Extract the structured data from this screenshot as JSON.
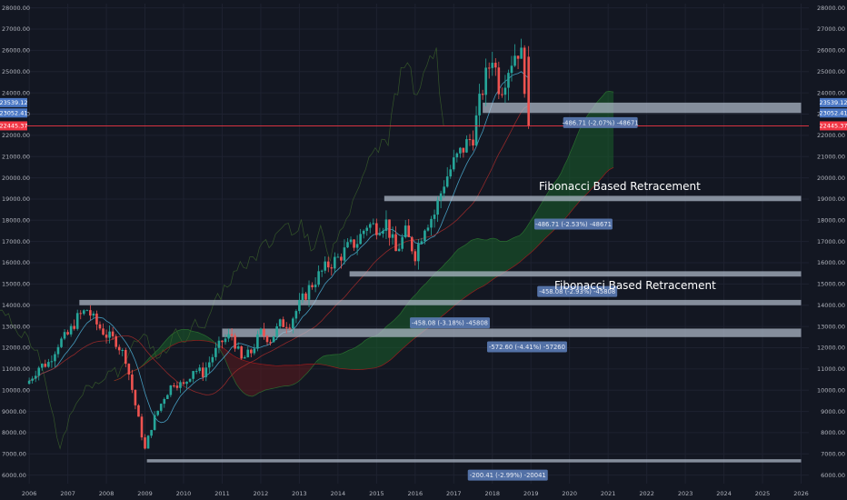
{
  "colors": {
    "background": "#131722",
    "grid": "#1e2230",
    "axis_text": "#b2b5be",
    "up_candle": "#26a69a",
    "down_candle": "#ef5350",
    "zone_fill": "#b2bccc",
    "pill_fill": "#5b7bb5",
    "price_line": "#f23645",
    "cloud_green": "#1a5e2a",
    "cloud_red": "#5c1a1e"
  },
  "chart_data": {
    "type": "candlestick",
    "title": "",
    "timeframe": "monthly",
    "x_ticks": [
      "2006",
      "2007",
      "2008",
      "2009",
      "2010",
      "2011",
      "2012",
      "2013",
      "2014",
      "2015",
      "2016",
      "2017",
      "2018",
      "2019",
      "2020",
      "2021",
      "2022",
      "2023",
      "2024",
      "2025",
      "2026"
    ],
    "y_ticks": [
      6000,
      7000,
      8000,
      9000,
      10000,
      11000,
      12000,
      13000,
      14000,
      15000,
      16000,
      17000,
      18000,
      19000,
      20000,
      21000,
      22000,
      23000,
      24000,
      25000,
      26000,
      27000,
      28000
    ],
    "ylim": [
      5600,
      28200
    ],
    "xlim": [
      2005.95,
      2026.2
    ],
    "price_markers": [
      {
        "label": "23539.12",
        "value": 23539.12,
        "color": "#4a77c4"
      },
      {
        "label": "23052.41",
        "value": 23052.41,
        "color": "#4a77c4"
      },
      {
        "label": "22445.37",
        "value": 22445.37,
        "color": "#f23645"
      }
    ],
    "close_series": [
      [
        2006.0,
        10450
      ],
      [
        2006.25,
        11100
      ],
      [
        2006.5,
        11300
      ],
      [
        2006.75,
        12200
      ],
      [
        2007.0,
        12600
      ],
      [
        2007.25,
        13400
      ],
      [
        2007.5,
        13800
      ],
      [
        2007.75,
        13100
      ],
      [
        2008.0,
        12600
      ],
      [
        2008.25,
        12300
      ],
      [
        2008.5,
        11500
      ],
      [
        2008.75,
        9300
      ],
      [
        2009.0,
        7200
      ],
      [
        2009.2,
        8500
      ],
      [
        2009.5,
        9700
      ],
      [
        2009.75,
        10400
      ],
      [
        2010.0,
        10200
      ],
      [
        2010.25,
        11000
      ],
      [
        2010.5,
        10800
      ],
      [
        2010.75,
        11600
      ],
      [
        2011.0,
        12300
      ],
      [
        2011.25,
        12600
      ],
      [
        2011.5,
        11400
      ],
      [
        2011.75,
        11800
      ],
      [
        2012.0,
        12700
      ],
      [
        2012.25,
        12400
      ],
      [
        2012.5,
        13100
      ],
      [
        2012.75,
        13200
      ],
      [
        2013.0,
        14000
      ],
      [
        2013.25,
        14800
      ],
      [
        2013.5,
        15400
      ],
      [
        2013.75,
        15900
      ],
      [
        2014.0,
        16200
      ],
      [
        2014.25,
        16700
      ],
      [
        2014.5,
        17000
      ],
      [
        2014.75,
        17800
      ],
      [
        2015.0,
        17700
      ],
      [
        2015.25,
        17900
      ],
      [
        2015.5,
        16500
      ],
      [
        2015.75,
        17400
      ],
      [
        2016.0,
        16400
      ],
      [
        2016.25,
        17800
      ],
      [
        2016.5,
        18300
      ],
      [
        2016.75,
        19800
      ],
      [
        2017.0,
        20700
      ],
      [
        2017.25,
        21400
      ],
      [
        2017.5,
        22000
      ],
      [
        2017.75,
        24200
      ],
      [
        2018.0,
        25800
      ],
      [
        2018.2,
        24100
      ],
      [
        2018.45,
        25400
      ],
      [
        2018.65,
        26100
      ],
      [
        2018.8,
        25500
      ],
      [
        2018.9,
        22445
      ]
    ],
    "zones": [
      {
        "name": "zone-1",
        "y_top": 23539,
        "y_bottom": 23052,
        "x_start": 2017.75,
        "x_end": 2026.0
      },
      {
        "name": "zone-2",
        "y_top": 19150,
        "y_bottom": 18900,
        "x_start": 2015.2,
        "x_end": 2026.0
      },
      {
        "name": "zone-3",
        "y_top": 15600,
        "y_bottom": 15350,
        "x_start": 2014.3,
        "x_end": 2026.0
      },
      {
        "name": "zone-4",
        "y_top": 14250,
        "y_bottom": 14000,
        "x_start": 2007.3,
        "x_end": 2026.0
      },
      {
        "name": "zone-5",
        "y_top": 12900,
        "y_bottom": 12500,
        "x_start": 2011.0,
        "x_end": 2026.0
      },
      {
        "name": "zone-6",
        "y_top": 6750,
        "y_bottom": 6600,
        "x_start": 2009.05,
        "x_end": 2026.0
      }
    ],
    "annotations": [
      {
        "text": "-486.71 (-2.07%) -48671",
        "x": 2020.8,
        "y": 22600,
        "width": 82
      },
      {
        "text": "-486.71 (-2.53%) -48671",
        "x": 2020.1,
        "y": 17820,
        "width": 86
      },
      {
        "text": "-458.08 (-2.93%) -45808",
        "x": 2020.2,
        "y": 14650,
        "width": 88
      },
      {
        "text": "-458.08 (-3.18%) -45808",
        "x": 2016.9,
        "y": 13170,
        "width": 88
      },
      {
        "text": "-572.60 (-4.41%) -57260",
        "x": 2018.9,
        "y": 12040,
        "width": 88
      },
      {
        "text": "-200.41 (-2.99%) -20041",
        "x": 2018.4,
        "y": 6000,
        "width": 88
      }
    ],
    "labels": [
      {
        "text": "Fibonacci Based Retracement",
        "x": 2021.3,
        "y": 19430
      },
      {
        "text": "Fibonacci Based Retracement",
        "x": 2021.7,
        "y": 14750
      }
    ]
  }
}
